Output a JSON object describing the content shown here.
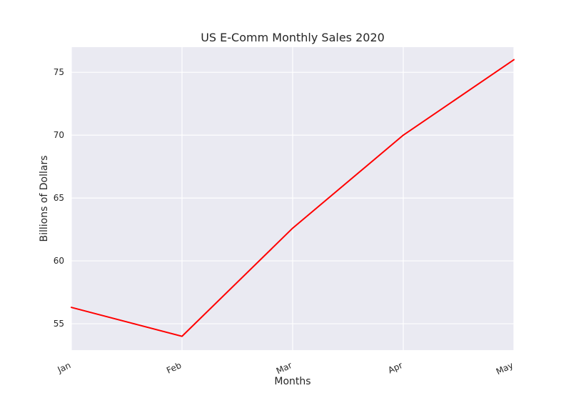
{
  "chart_data": {
    "type": "line",
    "title": "US E-Comm Monthly Sales 2020",
    "xlabel": "Months",
    "ylabel": "Billions of Dollars",
    "categories": [
      "Jan",
      "Feb",
      "Mar",
      "Apr",
      "May"
    ],
    "series": [
      {
        "values": [
          56.3,
          54.0,
          62.6,
          70.0,
          76.0
        ],
        "color": "#ff0000"
      }
    ],
    "yticks": [
      "55",
      "60",
      "65",
      "70",
      "75"
    ],
    "ylim": [
      52.9,
      77.0
    ],
    "grid": true,
    "style": {
      "plot_background": "#eaeaf2",
      "grid_color": "#ffffff",
      "text_color": "#262626"
    }
  }
}
